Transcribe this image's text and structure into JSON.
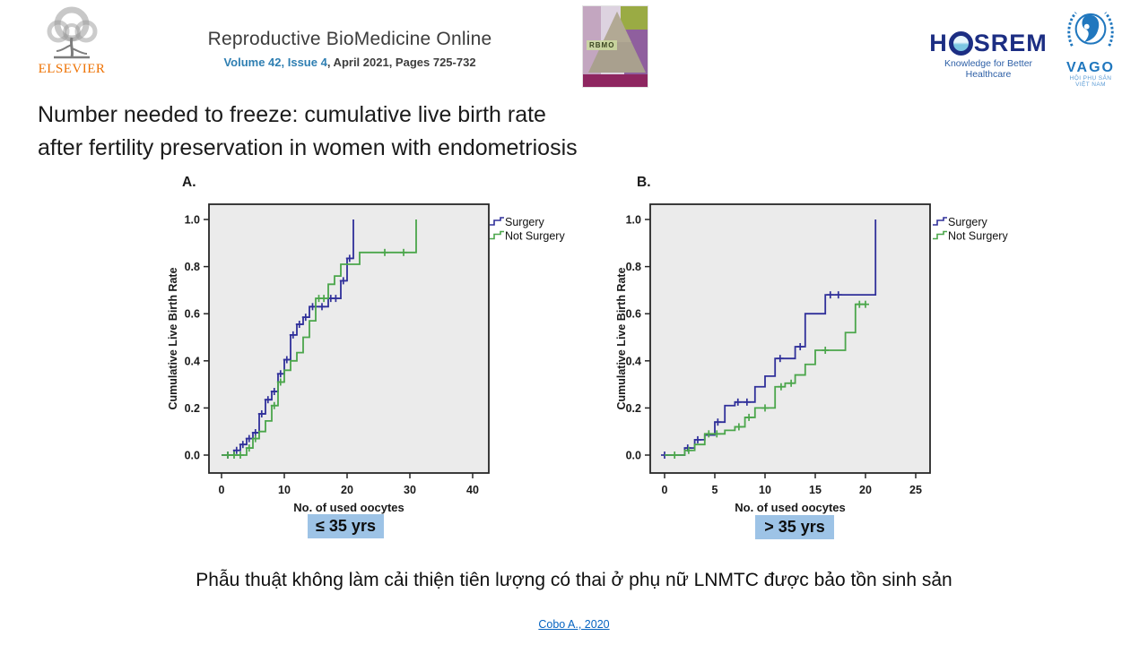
{
  "header": {
    "elsevier_label": "ELSEVIER",
    "journal": {
      "title": "Reproductive BioMedicine Online",
      "issue_link": "Volume 42, Issue 4",
      "issue_rest": ", April 2021, Pages 725-732"
    },
    "cover_label": "RBMO",
    "hosrem": {
      "name_h": "H",
      "name_srem": "SREM",
      "tagline": "Knowledge for Better Healthcare"
    },
    "vago": {
      "name": "VAGO",
      "tagline": "HỘI PHỤ SẢN VIỆT NAM"
    }
  },
  "title_line1": "Number needed to freeze: cumulative live birth rate",
  "title_line2": "after fertility preservation in women with endometriosis",
  "chart_data": [
    {
      "type": "line",
      "panel": "A.",
      "age_group": "≤ 35 yrs",
      "xlabel": "No. of used oocytes",
      "ylabel": "Cumulative Live Birth Rate",
      "xticks": [
        0,
        10,
        20,
        30,
        40
      ],
      "yticks": [
        0,
        0.2,
        0.4,
        0.6,
        0.8,
        1.0
      ],
      "xlim": [
        -2,
        42.6
      ],
      "ylim": [
        -0.08,
        1.07
      ],
      "grid": false,
      "legend_position": "top-right-outside",
      "series": [
        {
          "name": "Surgery",
          "color": "#30309a",
          "points": [
            [
              0,
              0
            ],
            [
              2,
              0.02
            ],
            [
              3,
              0.045
            ],
            [
              4,
              0.07
            ],
            [
              5,
              0.095
            ],
            [
              6,
              0.175
            ],
            [
              7,
              0.235
            ],
            [
              8,
              0.27
            ],
            [
              9,
              0.345
            ],
            [
              10,
              0.405
            ],
            [
              11,
              0.51
            ],
            [
              12,
              0.555
            ],
            [
              13,
              0.585
            ],
            [
              14,
              0.63
            ],
            [
              17,
              0.665
            ],
            [
              19,
              0.74
            ],
            [
              20,
              0.835
            ],
            [
              21,
              1.0
            ]
          ],
          "censors": [
            [
              1,
              0
            ],
            [
              2.4,
              0.02
            ],
            [
              3.4,
              0.045
            ],
            [
              4.4,
              0.07
            ],
            [
              5.4,
              0.095
            ],
            [
              6.4,
              0.175
            ],
            [
              7.4,
              0.235
            ],
            [
              8.4,
              0.27
            ],
            [
              9.4,
              0.345
            ],
            [
              10.4,
              0.405
            ],
            [
              11.4,
              0.51
            ],
            [
              12.4,
              0.555
            ],
            [
              13.4,
              0.585
            ],
            [
              14.5,
              0.63
            ],
            [
              16,
              0.63
            ],
            [
              17.4,
              0.665
            ],
            [
              18.2,
              0.665
            ],
            [
              19.4,
              0.74
            ],
            [
              20.4,
              0.835
            ]
          ]
        },
        {
          "name": "Not Surgery",
          "color": "#4ba64b",
          "points": [
            [
              0,
              0
            ],
            [
              4,
              0.03
            ],
            [
              5,
              0.07
            ],
            [
              6,
              0.1
            ],
            [
              7,
              0.145
            ],
            [
              8,
              0.21
            ],
            [
              9,
              0.31
            ],
            [
              10,
              0.36
            ],
            [
              11,
              0.4
            ],
            [
              12,
              0.435
            ],
            [
              13,
              0.5
            ],
            [
              14,
              0.57
            ],
            [
              15,
              0.665
            ],
            [
              17,
              0.725
            ],
            [
              18,
              0.76
            ],
            [
              19,
              0.81
            ],
            [
              22,
              0.86
            ],
            [
              31,
              1.0
            ]
          ],
          "censors": [
            [
              1,
              0
            ],
            [
              2,
              0
            ],
            [
              3,
              0
            ],
            [
              4.4,
              0.03
            ],
            [
              5.4,
              0.07
            ],
            [
              8.4,
              0.21
            ],
            [
              9.4,
              0.31
            ],
            [
              15.5,
              0.665
            ],
            [
              16.3,
              0.665
            ],
            [
              26,
              0.86
            ],
            [
              29,
              0.86
            ]
          ]
        }
      ]
    },
    {
      "type": "line",
      "panel": "B.",
      "age_group": "> 35 yrs",
      "xlabel": "No. of used oocytes",
      "ylabel": "Cumulative Live Birth Rate",
      "xticks": [
        0,
        5,
        10,
        15,
        20,
        25
      ],
      "yticks": [
        0,
        0.2,
        0.4,
        0.6,
        0.8,
        1.0
      ],
      "xlim": [
        -1.4,
        26.4
      ],
      "ylim": [
        -0.08,
        1.07
      ],
      "grid": false,
      "legend_position": "top-right-outside",
      "series": [
        {
          "name": "Surgery",
          "color": "#30309a",
          "points": [
            [
              0,
              0
            ],
            [
              2,
              0.03
            ],
            [
              3,
              0.065
            ],
            [
              4,
              0.085
            ],
            [
              5,
              0.14
            ],
            [
              6,
              0.21
            ],
            [
              7,
              0.225
            ],
            [
              9,
              0.29
            ],
            [
              10,
              0.335
            ],
            [
              11,
              0.41
            ],
            [
              13,
              0.46
            ],
            [
              14,
              0.6
            ],
            [
              16,
              0.68
            ],
            [
              21,
              1.0
            ]
          ],
          "censors": [
            [
              0,
              0
            ],
            [
              2.3,
              0.03
            ],
            [
              3.3,
              0.065
            ],
            [
              5.3,
              0.14
            ],
            [
              7.3,
              0.225
            ],
            [
              8.2,
              0.225
            ],
            [
              11.5,
              0.41
            ],
            [
              13.5,
              0.46
            ],
            [
              16.5,
              0.68
            ],
            [
              17.3,
              0.68
            ]
          ]
        },
        {
          "name": "Not Surgery",
          "color": "#4ba64b",
          "points": [
            [
              0,
              0
            ],
            [
              2,
              0.02
            ],
            [
              3,
              0.045
            ],
            [
              4,
              0.09
            ],
            [
              6,
              0.105
            ],
            [
              7,
              0.12
            ],
            [
              8,
              0.16
            ],
            [
              9,
              0.2
            ],
            [
              11,
              0.29
            ],
            [
              12,
              0.305
            ],
            [
              13,
              0.34
            ],
            [
              14,
              0.385
            ],
            [
              15,
              0.445
            ],
            [
              18,
              0.52
            ],
            [
              19,
              0.64
            ],
            [
              20,
              0.64
            ]
          ],
          "censors": [
            [
              1,
              0
            ],
            [
              2.4,
              0.02
            ],
            [
              4.4,
              0.09
            ],
            [
              5.2,
              0.09
            ],
            [
              7.4,
              0.12
            ],
            [
              8.4,
              0.16
            ],
            [
              10,
              0.2
            ],
            [
              11.6,
              0.29
            ],
            [
              12.6,
              0.305
            ],
            [
              16,
              0.445
            ],
            [
              19.4,
              0.64
            ],
            [
              20,
              0.64
            ]
          ]
        }
      ]
    }
  ],
  "conclusion": "Phẫu thuật không làm cải thiện tiên lượng có thai ở phụ nữ LNMTC được bảo tồn sinh sản",
  "citation": "Cobo A., 2020",
  "colors": {
    "surgery": "#30309a",
    "not_surgery": "#4ba64b",
    "plot_bg": "#ebebeb",
    "plot_border": "#262626",
    "highlight_bg": "#9dc3e6",
    "link_blue": "#0563c1",
    "elsevier_orange": "#ee7203",
    "journal_gray": "#3d3d3d",
    "issue_blue": "#2f7fb2",
    "hosrem_navy": "#1c2e83",
    "vago_blue": "#2077be"
  }
}
